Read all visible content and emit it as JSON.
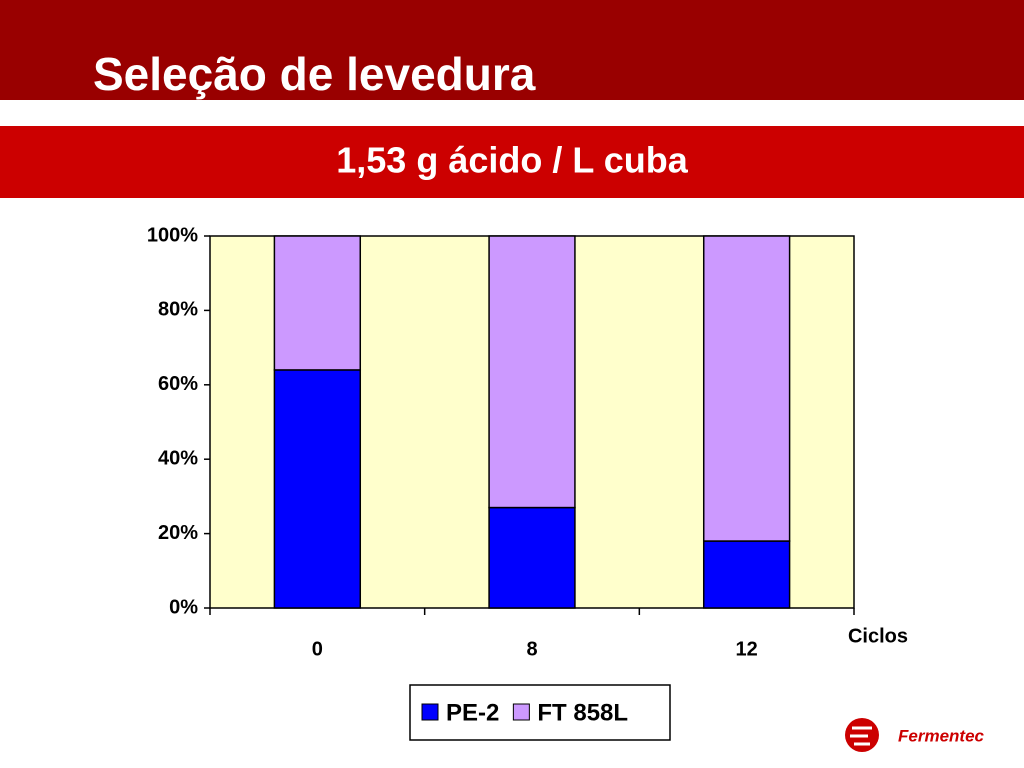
{
  "chart_data": {
    "type": "stacked_bar",
    "title": "Seleção de levedura",
    "subtitle": "1,53 g ácido / L cuba",
    "x_label": "Ciclos",
    "categories": [
      "0",
      "8",
      "12"
    ],
    "series": [
      {
        "name": "PE-2",
        "color": "#0000ff",
        "values": [
          64,
          27,
          18
        ]
      },
      {
        "name": "FT 858L",
        "color": "#cc99ff",
        "values": [
          36,
          73,
          82
        ]
      }
    ],
    "ylim": [
      0,
      100
    ],
    "yticks": [
      {
        "value": 0,
        "label": "0%"
      },
      {
        "value": 20,
        "label": "20%"
      },
      {
        "value": 40,
        "label": "40%"
      },
      {
        "value": 60,
        "label": "60%"
      },
      {
        "value": 80,
        "label": "80%"
      },
      {
        "value": 100,
        "label": "100%"
      }
    ],
    "plot_background": "#ffffcc",
    "legend": "bottom"
  },
  "logo": {
    "text": "Fermentec"
  }
}
